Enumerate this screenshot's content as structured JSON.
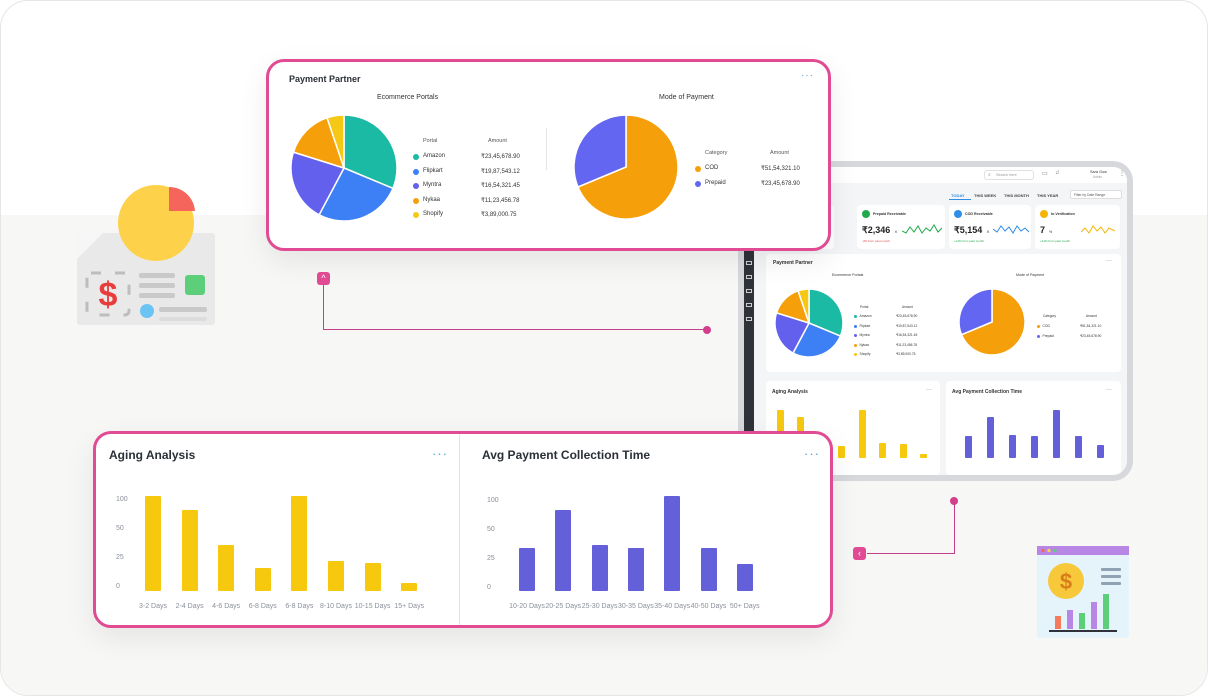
{
  "payment_partner": {
    "title": "Payment Partner",
    "ecommerce": {
      "title": "Ecommerce Portals",
      "col_portal": "Portal",
      "col_amount": "Amount",
      "rows": [
        {
          "name": "Amazon",
          "amount": "₹23,45,678.90",
          "color": "#1bbaa4"
        },
        {
          "name": "Flipkart",
          "amount": "₹19,87,543.12",
          "color": "#3d7ff5"
        },
        {
          "name": "Myntra",
          "amount": "₹16,54,321.45",
          "color": "#6360ee"
        },
        {
          "name": "Nykaa",
          "amount": "₹11,23,456.78",
          "color": "#f59f0b"
        },
        {
          "name": "Shopify",
          "amount": "₹3,89,000.75",
          "color": "#f5c815"
        }
      ]
    },
    "mode": {
      "title": "Mode of Payment",
      "col_category": "Category",
      "col_amount": "Amount",
      "rows": [
        {
          "name": "COD",
          "amount": "₹51,54,321.10",
          "color": "#f59f0b"
        },
        {
          "name": "Prepaid",
          "amount": "₹23,45,678.90",
          "color": "#6366f1"
        }
      ]
    }
  },
  "aging": {
    "title": "Aging Analysis",
    "ticks": [
      "100",
      "50",
      "25",
      "0"
    ],
    "color": "#f6c90e",
    "bars": [
      {
        "label": "3-2 Days",
        "value": 100
      },
      {
        "label": "2-4 Days",
        "value": 85
      },
      {
        "label": "4-6 Days",
        "value": 48
      },
      {
        "label": "6-8 Days",
        "value": 24
      },
      {
        "label": "6-8 Days",
        "value": 100
      },
      {
        "label": "8-10 Days",
        "value": 32
      },
      {
        "label": "10-15 Days",
        "value": 29
      },
      {
        "label": "15+ Days",
        "value": 8
      }
    ]
  },
  "collection": {
    "title": "Avg Payment Collection Time",
    "ticks": [
      "100",
      "50",
      "25",
      "0"
    ],
    "color": "#6360da",
    "bars": [
      {
        "label": "10-20 Days",
        "value": 45
      },
      {
        "label": "20-25 Days",
        "value": 85
      },
      {
        "label": "25-30 Days",
        "value": 48
      },
      {
        "label": "30-35 Days",
        "value": 45
      },
      {
        "label": "35-40 Days",
        "value": 100
      },
      {
        "label": "40-50 Days",
        "value": 45
      },
      {
        "label": "50+ Days",
        "value": 28
      }
    ]
  },
  "tablet": {
    "search_placeholder": "Search here",
    "user_name": "Sara Gow",
    "user_role": "Admin",
    "tabs": [
      "TODAY",
      "THIS WEEK",
      "THIS MONTH",
      "THIS YEAR"
    ],
    "date_filter": "Filter by Date Range",
    "kpis": [
      {
        "label": "Prepaid Receivable",
        "value": "₹2,346",
        "unit": "K",
        "note": "-3% from past month",
        "icon_color": "#22a94b"
      },
      {
        "label": "COD Receivable",
        "value": "₹5,154",
        "unit": "K",
        "note": "+11% from past month",
        "icon_color": "#2f8ee6"
      },
      {
        "label": "In-Verification",
        "value": "7",
        "unit": "%",
        "note": "+11% from past month",
        "icon_color": "#f5b400"
      }
    ],
    "panel_title": "Payment Partner",
    "panel_sub1": "Ecommerce Portals",
    "panel_sub2": "Mode of Payment",
    "aging_title": "Aging Analysis",
    "collection_title": "Avg Payment Collection Time"
  },
  "more_icon": "···"
}
